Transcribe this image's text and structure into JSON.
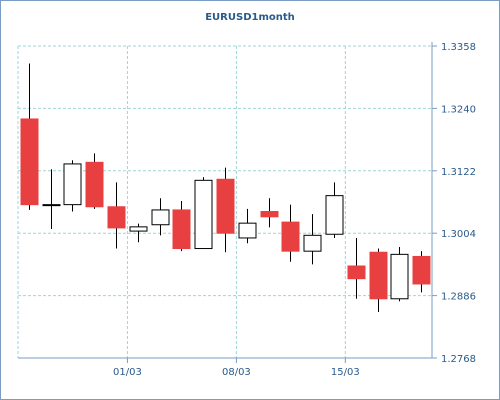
{
  "chart_data": {
    "type": "candlestick",
    "title": "EURUSD1month",
    "xlabel": "",
    "ylabel": "",
    "ylim": [
      1.2768,
      1.3358
    ],
    "y_ticks": [
      "1.3358",
      "1.3240",
      "1.3122",
      "1.3004",
      "1.2886",
      "1.2768"
    ],
    "x_tick_labels": [
      {
        "label": "01/03",
        "index": 5
      },
      {
        "label": "08/03",
        "index": 10
      },
      {
        "label": "15/03",
        "index": 15
      }
    ],
    "grid": true,
    "colors": {
      "up_fill": "#ffffff",
      "down_fill": "#e84040",
      "outline": "#000000",
      "grid": "#9fd6d6",
      "text": "#2a5a8a",
      "frame": "#7a9cc4"
    },
    "candles": [
      {
        "open": 1.322,
        "high": 1.3325,
        "low": 1.3048,
        "close": 1.3058
      },
      {
        "open": 1.3058,
        "high": 1.3125,
        "low": 1.3012,
        "close": 1.3058
      },
      {
        "open": 1.3058,
        "high": 1.3142,
        "low": 1.3045,
        "close": 1.3135
      },
      {
        "open": 1.3138,
        "high": 1.3155,
        "low": 1.305,
        "close": 1.3054
      },
      {
        "open": 1.3054,
        "high": 1.31,
        "low": 1.2975,
        "close": 1.3014
      },
      {
        "open": 1.3008,
        "high": 1.3022,
        "low": 1.2987,
        "close": 1.3016
      },
      {
        "open": 1.302,
        "high": 1.307,
        "low": 1.3,
        "close": 1.3048
      },
      {
        "open": 1.3048,
        "high": 1.3065,
        "low": 1.297,
        "close": 1.2975
      },
      {
        "open": 1.2975,
        "high": 1.311,
        "low": 1.2975,
        "close": 1.3104
      },
      {
        "open": 1.3106,
        "high": 1.3128,
        "low": 1.2968,
        "close": 1.3004
      },
      {
        "open": 1.2995,
        "high": 1.305,
        "low": 1.2985,
        "close": 1.3023
      },
      {
        "open": 1.3045,
        "high": 1.307,
        "low": 1.3015,
        "close": 1.3035
      },
      {
        "open": 1.3025,
        "high": 1.3058,
        "low": 1.295,
        "close": 1.297
      },
      {
        "open": 1.297,
        "high": 1.304,
        "low": 1.2945,
        "close": 1.3
      },
      {
        "open": 1.3002,
        "high": 1.31,
        "low": 1.2995,
        "close": 1.3075
      },
      {
        "open": 1.2942,
        "high": 1.2995,
        "low": 1.288,
        "close": 1.2918
      },
      {
        "open": 1.2968,
        "high": 1.2975,
        "low": 1.2855,
        "close": 1.288
      },
      {
        "open": 1.288,
        "high": 1.2978,
        "low": 1.2875,
        "close": 1.2964
      },
      {
        "open": 1.296,
        "high": 1.297,
        "low": 1.2892,
        "close": 1.2908
      }
    ]
  }
}
